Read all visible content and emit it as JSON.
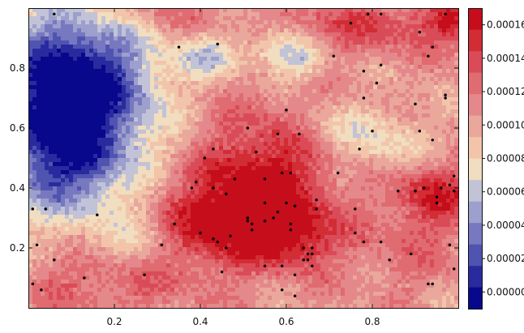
{
  "chart_data": {
    "type": "heatmap",
    "title": "",
    "xlabel": "",
    "ylabel": "",
    "xlim": [
      0.0,
      1.0
    ],
    "ylim": [
      0.0,
      1.0
    ],
    "x_ticks": [
      0.2,
      0.4,
      0.6,
      0.8
    ],
    "x_tick_labels": [
      "0.2",
      "0.4",
      "0.6",
      "0.8"
    ],
    "y_ticks": [
      0.2,
      0.4,
      0.6,
      0.8
    ],
    "y_tick_labels": [
      "0.2",
      "0.4",
      "0.6",
      "0.8"
    ],
    "colorbar": {
      "min": -1e-05,
      "max": 0.00017,
      "ticks": [
        0.0,
        2e-05,
        4e-05,
        6e-05,
        8e-05,
        0.0001,
        0.00012,
        0.00014,
        0.00016
      ],
      "tick_labels": [
        "0.00000",
        "0.00002",
        "0.00004",
        "0.00006",
        "0.00008",
        "0.00010",
        "0.00012",
        "0.00014",
        "0.00016"
      ],
      "levels": [
        "#08088c",
        "#2a2a9f",
        "#4f54b1",
        "#7778bf",
        "#9d9fcc",
        "#c2c3d6",
        "#f1ddbf",
        "#f2c5aa",
        "#eaa79b",
        "#e4888b",
        "#e06b70",
        "#da4b58",
        "#d22c34",
        "#c60d1b"
      ]
    },
    "field": {
      "base_value": 0.000105,
      "components": [
        {
          "x": 0.1,
          "y": 0.73,
          "sx": 0.13,
          "sy": 0.18,
          "amp": -0.00013
        },
        {
          "x": 0.08,
          "y": 0.46,
          "sx": 0.11,
          "sy": 0.12,
          "amp": -6e-05
        },
        {
          "x": 0.42,
          "y": 0.84,
          "sx": 0.05,
          "sy": 0.05,
          "amp": -4e-05
        },
        {
          "x": 0.58,
          "y": 0.86,
          "sx": 0.05,
          "sy": 0.05,
          "amp": -4e-05
        },
        {
          "x": 0.64,
          "y": 0.82,
          "sx": 0.04,
          "sy": 0.04,
          "amp": -3e-05
        },
        {
          "x": 0.55,
          "y": 0.42,
          "sx": 0.11,
          "sy": 0.16,
          "amp": 6e-05
        },
        {
          "x": 0.41,
          "y": 0.28,
          "sx": 0.1,
          "sy": 0.1,
          "amp": 5e-05
        },
        {
          "x": 0.62,
          "y": 0.24,
          "sx": 0.07,
          "sy": 0.07,
          "amp": 4.5e-05
        },
        {
          "x": 0.94,
          "y": 0.38,
          "sx": 0.07,
          "sy": 0.08,
          "amp": 5e-05
        },
        {
          "x": 0.8,
          "y": 0.94,
          "sx": 0.15,
          "sy": 0.06,
          "amp": 3.5e-05
        },
        {
          "x": 0.99,
          "y": 0.96,
          "sx": 0.05,
          "sy": 0.05,
          "amp": 4e-05
        },
        {
          "x": 0.83,
          "y": 0.55,
          "sx": 0.08,
          "sy": 0.08,
          "amp": -3e-05
        },
        {
          "x": 0.26,
          "y": 0.24,
          "sx": 0.08,
          "sy": 0.08,
          "amp": -2.5e-05
        },
        {
          "x": 0.18,
          "y": 0.08,
          "sx": 0.14,
          "sy": 0.07,
          "amp": 2.5e-05
        },
        {
          "x": 0.7,
          "y": 0.6,
          "sx": 0.06,
          "sy": 0.05,
          "amp": -2e-05
        },
        {
          "x": 0.87,
          "y": 0.18,
          "sx": 0.1,
          "sy": 0.1,
          "amp": 1.5e-05
        },
        {
          "x": 0.3,
          "y": 0.98,
          "sx": 0.12,
          "sy": 0.05,
          "amp": 2e-05
        }
      ]
    },
    "points": [
      [
        0.06,
        0.98
      ],
      [
        0.35,
        0.87
      ],
      [
        0.44,
        0.88
      ],
      [
        0.71,
        0.84
      ],
      [
        0.75,
        0.95
      ],
      [
        0.79,
        0.98
      ],
      [
        0.82,
        0.98
      ],
      [
        0.91,
        0.92
      ],
      [
        0.94,
        0.87
      ],
      [
        0.93,
        0.84
      ],
      [
        0.97,
        0.98
      ],
      [
        0.82,
        0.81
      ],
      [
        0.78,
        0.79
      ],
      [
        0.81,
        0.75
      ],
      [
        0.78,
        0.7
      ],
      [
        0.9,
        0.68
      ],
      [
        0.97,
        0.71
      ],
      [
        0.97,
        0.7
      ],
      [
        0.6,
        0.66
      ],
      [
        0.51,
        0.6
      ],
      [
        0.58,
        0.58
      ],
      [
        0.63,
        0.58
      ],
      [
        0.8,
        0.59
      ],
      [
        0.91,
        0.59
      ],
      [
        0.94,
        0.56
      ],
      [
        0.77,
        0.53
      ],
      [
        0.43,
        0.53
      ],
      [
        0.41,
        0.5
      ],
      [
        0.53,
        0.52
      ],
      [
        0.59,
        0.45
      ],
      [
        0.61,
        0.45
      ],
      [
        0.48,
        0.43
      ],
      [
        0.55,
        0.43
      ],
      [
        0.72,
        0.45
      ],
      [
        0.39,
        0.42
      ],
      [
        0.38,
        0.4
      ],
      [
        0.43,
        0.4
      ],
      [
        0.46,
        0.38
      ],
      [
        0.99,
        0.44
      ],
      [
        0.98,
        0.41
      ],
      [
        0.96,
        0.4
      ],
      [
        0.99,
        0.39
      ],
      [
        0.92,
        0.4
      ],
      [
        0.9,
        0.39
      ],
      [
        0.86,
        0.39
      ],
      [
        0.95,
        0.37
      ],
      [
        0.95,
        0.35
      ],
      [
        0.6,
        0.35
      ],
      [
        0.62,
        0.34
      ],
      [
        0.58,
        0.32
      ],
      [
        0.55,
        0.35
      ],
      [
        0.67,
        0.36
      ],
      [
        0.67,
        0.33
      ],
      [
        0.76,
        0.33
      ],
      [
        0.51,
        0.3
      ],
      [
        0.51,
        0.29
      ],
      [
        0.55,
        0.29
      ],
      [
        0.57,
        0.3
      ],
      [
        0.34,
        0.28
      ],
      [
        0.01,
        0.33
      ],
      [
        0.04,
        0.33
      ],
      [
        0.16,
        0.31
      ],
      [
        0.61,
        0.28
      ],
      [
        0.52,
        0.28
      ],
      [
        0.52,
        0.26
      ],
      [
        0.61,
        0.26
      ],
      [
        0.31,
        0.21
      ],
      [
        0.4,
        0.25
      ],
      [
        0.43,
        0.23
      ],
      [
        0.44,
        0.22
      ],
      [
        0.47,
        0.24
      ],
      [
        0.76,
        0.25
      ],
      [
        0.78,
        0.22
      ],
      [
        0.82,
        0.22
      ],
      [
        0.98,
        0.21
      ],
      [
        0.02,
        0.21
      ],
      [
        0.06,
        0.16
      ],
      [
        0.27,
        0.11
      ],
      [
        0.13,
        0.1
      ],
      [
        0.55,
        0.14
      ],
      [
        0.59,
        0.14
      ],
      [
        0.64,
        0.2
      ],
      [
        0.65,
        0.18
      ],
      [
        0.66,
        0.2
      ],
      [
        0.66,
        0.18
      ],
      [
        0.65,
        0.16
      ],
      [
        0.64,
        0.16
      ],
      [
        0.66,
        0.14
      ],
      [
        0.62,
        0.11
      ],
      [
        0.59,
        0.06
      ],
      [
        0.62,
        0.04
      ],
      [
        0.84,
        0.16
      ],
      [
        0.89,
        0.18
      ],
      [
        0.93,
        0.08
      ],
      [
        0.94,
        0.08
      ],
      [
        0.99,
        0.13
      ],
      [
        0.46,
        0.2
      ],
      [
        0.45,
        0.12
      ],
      [
        0.03,
        0.06
      ],
      [
        0.01,
        0.08
      ]
    ]
  }
}
